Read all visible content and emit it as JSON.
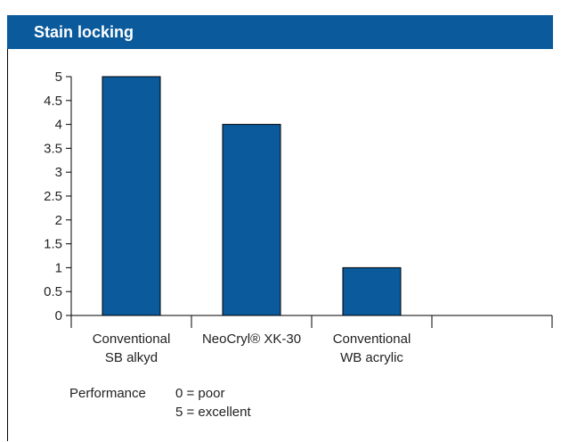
{
  "chart_data": {
    "type": "bar",
    "title": "Stain locking",
    "categories": [
      [
        "Conventional",
        "SB alkyd"
      ],
      [
        "NeoCryl® XK-30"
      ],
      [
        "Conventional",
        "WB acrylic"
      ],
      [
        ""
      ]
    ],
    "values": [
      5,
      4,
      1,
      null
    ],
    "ylim": [
      0,
      5
    ],
    "yticks": [
      "0",
      "0.5",
      "1",
      "1.5",
      "2",
      "2.5",
      "3",
      "3.5",
      "4",
      "4.5",
      "5"
    ],
    "grid": false,
    "colors": {
      "bar": "#0a5a9c",
      "title_bg": "#0a5a9c"
    }
  },
  "legend_note": {
    "label": "Performance",
    "line1": "0 = poor",
    "line2": "5 = excellent"
  }
}
